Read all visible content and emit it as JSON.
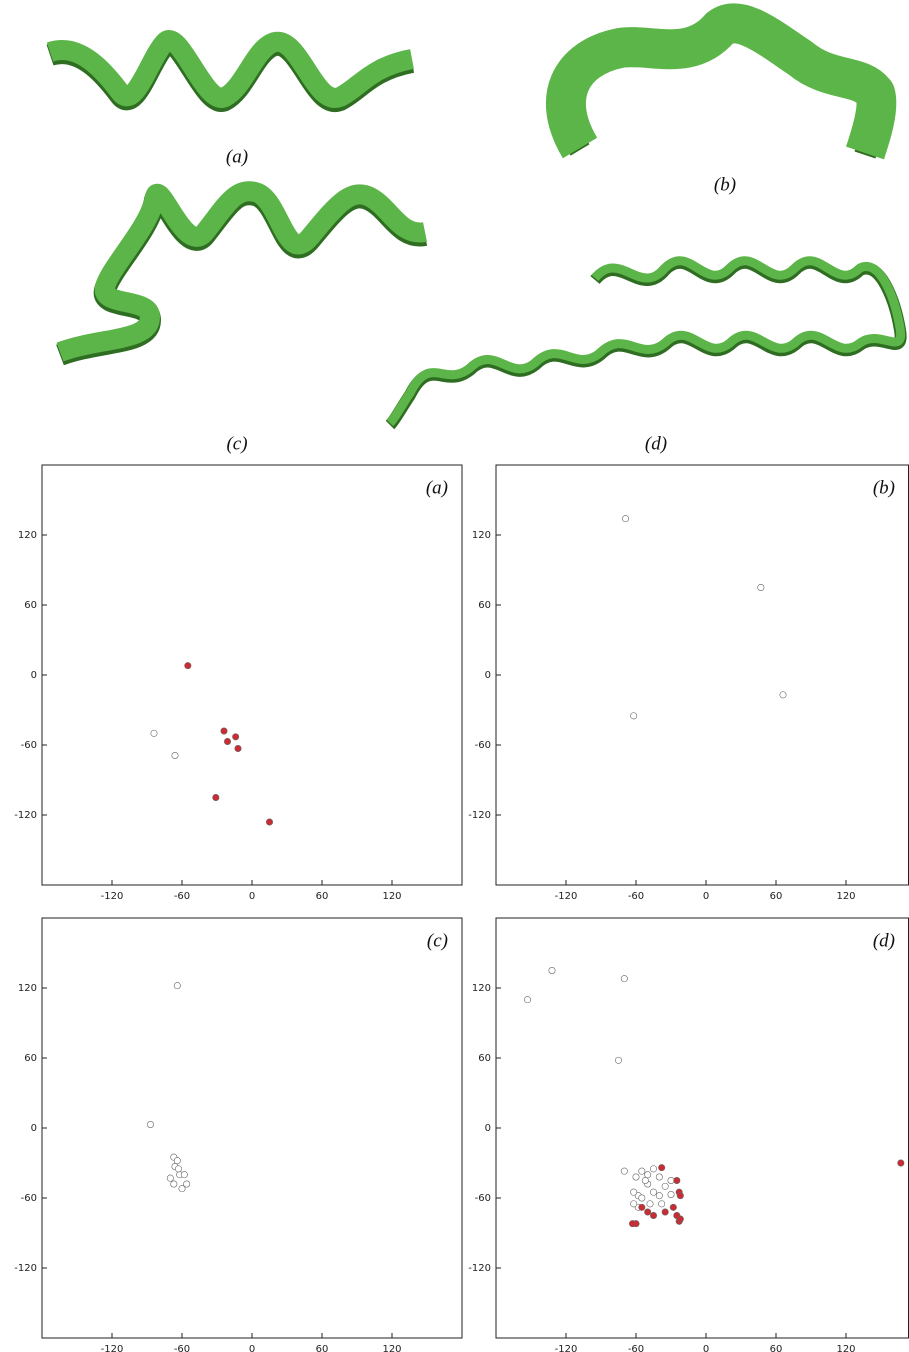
{
  "structure_labels": [
    "(a)",
    "(b)",
    "(c)",
    "(d)"
  ],
  "chart_data": [
    {
      "type": "scatter",
      "label": "(a)",
      "xlim": [
        -180,
        180
      ],
      "ylim": [
        -180,
        180
      ],
      "xticks": [
        -120,
        -60,
        0,
        60,
        120
      ],
      "yticks": [
        -120,
        -60,
        0,
        60,
        120
      ],
      "series": [
        {
          "color": "#ffffff",
          "x": [
            -84,
            -66
          ],
          "values": [
            -50,
            -69
          ]
        },
        {
          "color": "#cc2b33",
          "x": [
            -55,
            -24,
            -21,
            -14,
            -12,
            -31,
            15
          ],
          "values": [
            8,
            -48,
            -57,
            -53,
            -63,
            -105,
            -126
          ]
        }
      ]
    },
    {
      "type": "scatter",
      "label": "(b)",
      "xlim": [
        -180,
        180
      ],
      "ylim": [
        -180,
        180
      ],
      "xticks": [
        -120,
        -60,
        0,
        60,
        120
      ],
      "yticks": [
        -120,
        -60,
        0,
        60,
        120
      ],
      "series": [
        {
          "color": "#ffffff",
          "x": [
            -69,
            47,
            -62,
            66
          ],
          "values": [
            134,
            75,
            -35,
            -17
          ]
        }
      ]
    },
    {
      "type": "scatter",
      "label": "(c)",
      "xlim": [
        -180,
        180
      ],
      "ylim": [
        -180,
        180
      ],
      "xticks": [
        -120,
        -60,
        0,
        60,
        120
      ],
      "yticks": [
        -120,
        -60,
        0,
        60,
        120
      ],
      "series": [
        {
          "color": "#ffffff",
          "x": [
            -64,
            -87,
            -67,
            -64,
            -66,
            -62,
            -70,
            -58,
            -67,
            -60,
            -56,
            -63
          ],
          "values": [
            122,
            3,
            -25,
            -28,
            -33,
            -40,
            -43,
            -40,
            -48,
            -52,
            -48,
            -35
          ]
        }
      ]
    },
    {
      "type": "scatter",
      "label": "(d)",
      "xlim": [
        -180,
        180
      ],
      "ylim": [
        -180,
        180
      ],
      "xticks": [
        -120,
        -60,
        0,
        60,
        120
      ],
      "yticks": [
        -120,
        -60,
        0,
        60,
        120
      ],
      "series": [
        {
          "color": "#ffffff",
          "x": [
            -132,
            -70,
            -153,
            -75,
            -70,
            -60,
            -55,
            -50,
            -45,
            -40,
            -35,
            -30,
            -58,
            -62,
            -55,
            -50,
            -45,
            -40,
            -38,
            -48,
            -58,
            -62,
            -30,
            -52
          ],
          "values": [
            135,
            128,
            110,
            58,
            -37,
            -42,
            -37,
            -40,
            -35,
            -42,
            -50,
            -45,
            -58,
            -55,
            -60,
            -48,
            -55,
            -58,
            -65,
            -65,
            -68,
            -65,
            -57,
            -45
          ]
        },
        {
          "color": "#cc2b33",
          "x": [
            -38,
            -25,
            -23,
            -22,
            -55,
            -45,
            -35,
            -28,
            -25,
            -23,
            -22,
            -60,
            -63,
            -50,
            167
          ],
          "values": [
            -34,
            -45,
            -55,
            -58,
            -68,
            -75,
            -72,
            -68,
            -75,
            -80,
            -78,
            -82,
            -82,
            -72,
            -30
          ]
        }
      ]
    }
  ]
}
